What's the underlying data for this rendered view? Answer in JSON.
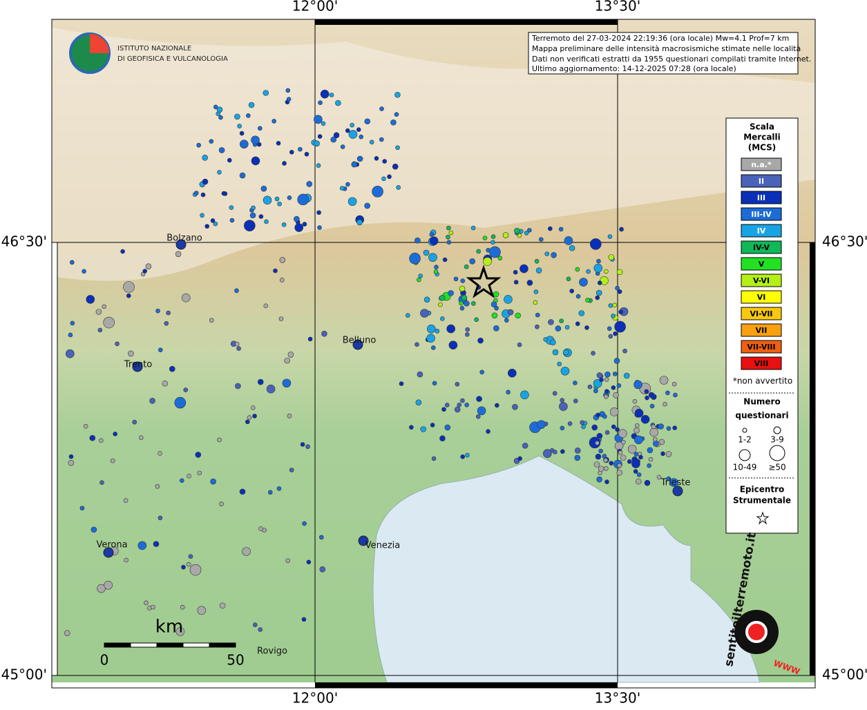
{
  "axes": {
    "lon_labels": [
      "12°00'",
      "13°30'"
    ],
    "lat_labels": [
      "46°30'",
      "45°00'"
    ]
  },
  "info": {
    "lines": [
      "Terremoto del 27-03-2024 22:19:36 (ora locale) Mw=4.1 Prof=7 km",
      "Mappa preliminare delle intensità macrosismiche stimate nelle località",
      "Dati non verificati estratti da 1955 questionari compilati tramite Internet.",
      "Ultimo aggiornamento: 14-12-2025 07:28 (ora locale)"
    ]
  },
  "logo": {
    "line1": "ISTITUTO NAZIONALE",
    "line2": "DI GEOFISICA E VULCANOLOGIA"
  },
  "legend": {
    "title": [
      "Scala",
      "Mercalli",
      "(MCS)"
    ],
    "classes": [
      {
        "label": "n.a.*",
        "color": "#a8a8a8"
      },
      {
        "label": "II",
        "color": "#4a62b8"
      },
      {
        "label": "III",
        "color": "#0a30b8"
      },
      {
        "label": "III-IV",
        "color": "#1c6cd8"
      },
      {
        "label": "IV",
        "color": "#18a4e4"
      },
      {
        "label": "IV-V",
        "color": "#10b858"
      },
      {
        "label": "V",
        "color": "#22e022"
      },
      {
        "label": "V-VI",
        "color": "#b4f014"
      },
      {
        "label": "VI",
        "color": "#ffff00"
      },
      {
        "label": "VI-VII",
        "color": "#f8c810"
      },
      {
        "label": "VII",
        "color": "#f8a010"
      },
      {
        "label": "VII-VIII",
        "color": "#f06010"
      },
      {
        "label": "VIII",
        "color": "#e81010"
      }
    ],
    "note": "*non avvertito",
    "count_title": [
      "Numero",
      "questionari"
    ],
    "sizes": [
      "1-2",
      "3-9",
      "10-49",
      "≥50"
    ],
    "epicenter": [
      "Epicentro",
      "Strumentale"
    ]
  },
  "cities": [
    "Bolzano",
    "Belluno",
    "Trento",
    "Trieste",
    "Verona",
    "Venezia",
    "Rovigo"
  ],
  "scale": {
    "unit": "km",
    "ticks": [
      "0",
      "50"
    ]
  },
  "watermark": {
    "site": "sentitoilterremoto.it",
    "www": "WWW"
  }
}
